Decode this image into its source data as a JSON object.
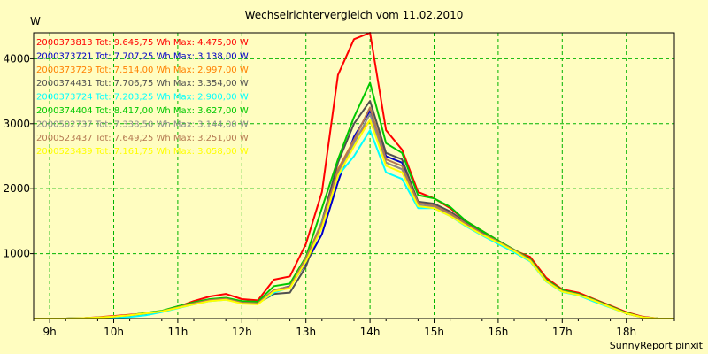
{
  "chart_data": {
    "type": "line",
    "title": "Wechselrichtervergleich vom 11.02.2010",
    "ylabel": "W",
    "xlabel": "",
    "footer": "SunnyReport pinxit",
    "x_ticks": [
      "9h",
      "10h",
      "11h",
      "12h",
      "13h",
      "14h",
      "15h",
      "16h",
      "17h",
      "18h"
    ],
    "y_ticks": [
      1000,
      2000,
      3000,
      4000
    ],
    "xlim": [
      8.75,
      18.75
    ],
    "ylim": [
      0,
      4400
    ],
    "grid": true,
    "legend_position": "top-left",
    "x": [
      8.75,
      9.0,
      9.25,
      9.5,
      9.75,
      10.0,
      10.25,
      10.5,
      10.75,
      11.0,
      11.25,
      11.5,
      11.75,
      12.0,
      12.25,
      12.5,
      12.75,
      13.0,
      13.25,
      13.5,
      13.75,
      14.0,
      14.25,
      14.5,
      14.75,
      15.0,
      15.25,
      15.5,
      15.75,
      16.0,
      16.25,
      16.5,
      16.75,
      17.0,
      17.25,
      17.5,
      17.75,
      18.0,
      18.25,
      18.5,
      18.75
    ],
    "series": [
      {
        "name": "2000373813",
        "tot": "9.645,75 Wh",
        "max": "4.475,00 W",
        "color": "#ff0000",
        "values": [
          0,
          0,
          0,
          5,
          20,
          40,
          60,
          80,
          110,
          180,
          270,
          340,
          380,
          300,
          280,
          600,
          650,
          1150,
          1950,
          3750,
          4300,
          4400,
          2900,
          2600,
          1950,
          1850,
          1700,
          1500,
          1350,
          1200,
          1050,
          950,
          630,
          450,
          400,
          300,
          200,
          100,
          30,
          0,
          0
        ]
      },
      {
        "name": "2000373721",
        "tot": "7.707,25 Wh",
        "max": "3.138,00 W",
        "color": "#0000c8",
        "values": [
          0,
          0,
          0,
          5,
          10,
          20,
          30,
          60,
          110,
          170,
          230,
          280,
          300,
          260,
          250,
          430,
          500,
          850,
          1300,
          2100,
          2800,
          3200,
          2500,
          2400,
          1800,
          1750,
          1620,
          1450,
          1300,
          1180,
          1050,
          900,
          580,
          420,
          370,
          280,
          180,
          80,
          20,
          0,
          0
        ]
      },
      {
        "name": "2000373729",
        "tot": "7.514,00 Wh",
        "max": "2.997,00 W",
        "color": "#ff8000",
        "values": [
          0,
          0,
          0,
          5,
          15,
          30,
          50,
          80,
          110,
          170,
          230,
          280,
          300,
          240,
          230,
          430,
          480,
          900,
          1500,
          2300,
          2750,
          3050,
          2400,
          2300,
          1750,
          1700,
          1580,
          1450,
          1300,
          1180,
          1050,
          900,
          580,
          420,
          370,
          280,
          180,
          80,
          20,
          0,
          0
        ]
      },
      {
        "name": "2000374431",
        "tot": "7.706,75 Wh",
        "max": "3.354,00 W",
        "color": "#505050",
        "values": [
          0,
          0,
          0,
          5,
          15,
          30,
          50,
          80,
          110,
          180,
          240,
          290,
          310,
          250,
          240,
          380,
          400,
          800,
          1500,
          2400,
          3000,
          3350,
          2550,
          2450,
          1800,
          1770,
          1650,
          1480,
          1320,
          1190,
          1060,
          910,
          590,
          430,
          370,
          280,
          180,
          80,
          20,
          0,
          0
        ]
      },
      {
        "name": "2000373724",
        "tot": "7.203,25 Wh",
        "max": "2.900,00 W",
        "color": "#00ffff",
        "values": [
          0,
          0,
          0,
          5,
          10,
          15,
          25,
          50,
          100,
          160,
          220,
          270,
          290,
          240,
          230,
          400,
          480,
          880,
          1500,
          2200,
          2500,
          2900,
          2250,
          2150,
          1700,
          1700,
          1580,
          1420,
          1280,
          1150,
          1020,
          880,
          570,
          410,
          360,
          260,
          170,
          80,
          20,
          0,
          0
        ]
      },
      {
        "name": "2000374404",
        "tot": "8.417,00 Wh",
        "max": "3.627,00 W",
        "color": "#00c800",
        "values": [
          0,
          0,
          0,
          5,
          15,
          30,
          50,
          90,
          120,
          190,
          250,
          300,
          320,
          270,
          260,
          500,
          540,
          950,
          1700,
          2450,
          3100,
          3630,
          2700,
          2550,
          1900,
          1850,
          1720,
          1500,
          1350,
          1200,
          1060,
          920,
          600,
          440,
          380,
          290,
          190,
          90,
          20,
          0,
          0
        ]
      },
      {
        "name": "2000502737",
        "tot": "7.338,50 Wh",
        "max": "3.144,00 W",
        "color": "#8c8c8c",
        "values": [
          0,
          0,
          0,
          5,
          15,
          30,
          50,
          80,
          110,
          170,
          230,
          280,
          300,
          240,
          230,
          440,
          490,
          920,
          1450,
          2250,
          2700,
          3150,
          2400,
          2300,
          1750,
          1720,
          1600,
          1450,
          1300,
          1180,
          1050,
          900,
          580,
          420,
          370,
          280,
          180,
          80,
          20,
          0,
          0
        ]
      },
      {
        "name": "2000523437",
        "tot": "7.649,25 Wh",
        "max": "3.251,00 W",
        "color": "#b47850",
        "values": [
          0,
          0,
          0,
          5,
          15,
          30,
          50,
          80,
          110,
          175,
          235,
          285,
          305,
          245,
          235,
          440,
          490,
          930,
          1480,
          2280,
          2750,
          3250,
          2450,
          2350,
          1780,
          1740,
          1620,
          1460,
          1310,
          1185,
          1055,
          905,
          585,
          425,
          370,
          280,
          180,
          80,
          20,
          0,
          0
        ]
      },
      {
        "name": "2000523439",
        "tot": "7.161,75 Wh",
        "max": "3.058,00 W",
        "color": "#ffff00",
        "values": [
          0,
          0,
          0,
          5,
          15,
          30,
          50,
          80,
          110,
          165,
          220,
          270,
          290,
          230,
          220,
          420,
          470,
          880,
          1400,
          2200,
          2650,
          3060,
          2350,
          2250,
          1730,
          1700,
          1580,
          1430,
          1290,
          1170,
          1040,
          890,
          575,
          415,
          365,
          275,
          175,
          80,
          20,
          0,
          0
        ]
      }
    ]
  }
}
